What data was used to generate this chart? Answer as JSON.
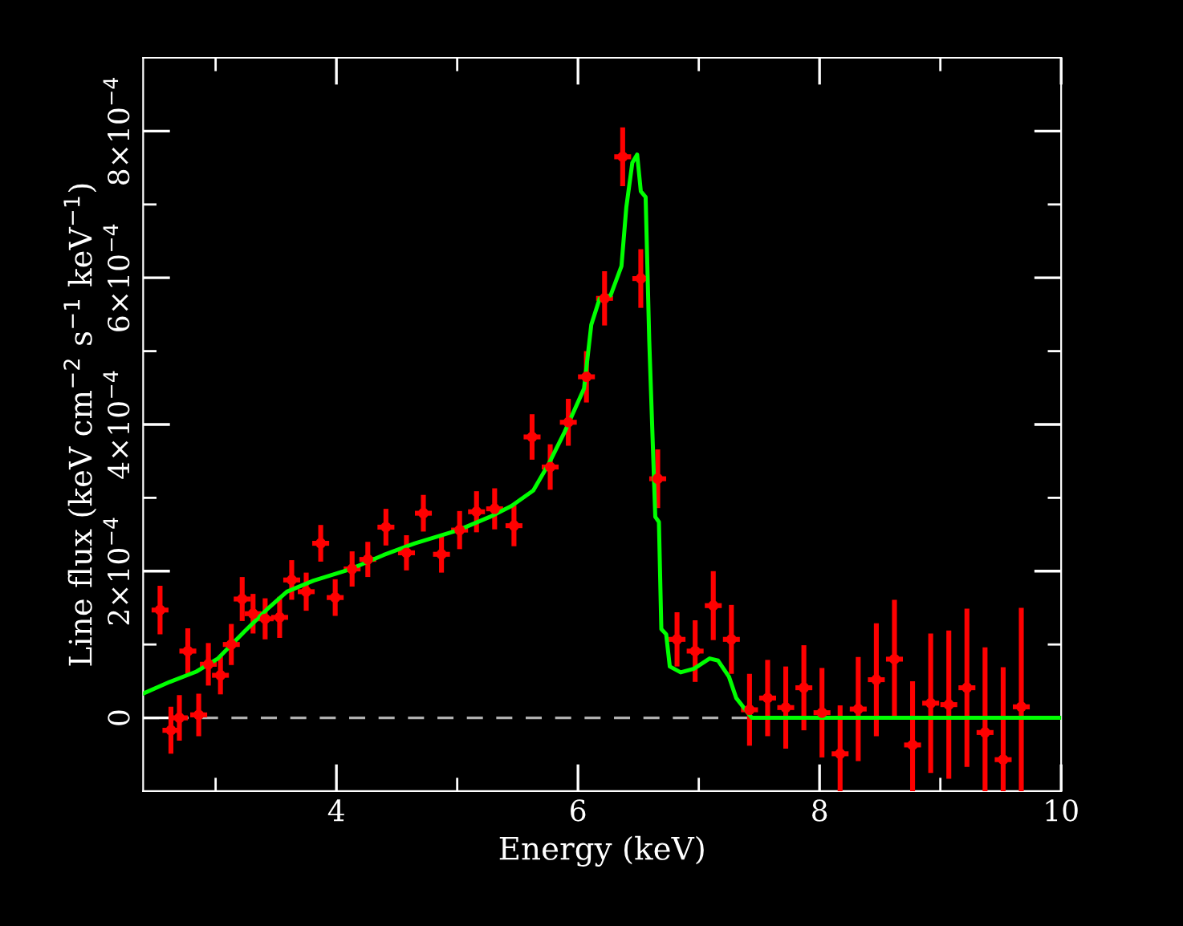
{
  "chart_data": {
    "type": "scatter",
    "xlabel": "Energy (keV)",
    "ylabel": "Line flux (keV cm$^{−2}$ s$^{−1}$ keV$^{−1}$)",
    "xlim": [
      2.4,
      10
    ],
    "ylim": [
      -0.0001,
      0.0009
    ],
    "xticks": [
      {
        "value": 3,
        "label": null
      },
      4,
      {
        "value": 5,
        "label": null
      },
      6,
      {
        "value": 7,
        "label": null
      },
      8,
      {
        "value": 9,
        "label": null
      },
      10
    ],
    "yticks": [
      0,
      {
        "value": 0.0001,
        "label": null
      },
      {
        "value": 0.0002,
        "label": "2×10$^{−4}$"
      },
      {
        "value": 0.0003,
        "label": null
      },
      {
        "value": 0.0004,
        "label": "4×10$^{−4}$"
      },
      {
        "value": 0.0005,
        "label": null
      },
      {
        "value": 0.0006,
        "label": "6×10$^{−4}$"
      },
      {
        "value": 0.0007,
        "label": null
      },
      {
        "value": 0.0008,
        "label": "8×10$^{−4}$"
      }
    ],
    "ref_lines": [
      {
        "axis": "y",
        "value": 0,
        "label": null,
        "color": "#b0b0b0",
        "line_style": "dashed"
      }
    ],
    "series": [
      {
        "color": "#ff0000",
        "marker": "circle",
        "x": [
          2.54,
          2.63,
          2.7,
          2.77,
          2.86,
          2.94,
          3.04,
          3.13,
          3.22,
          3.31,
          3.41,
          3.53,
          3.63,
          3.75,
          3.87,
          3.99,
          4.13,
          4.26,
          4.41,
          4.58,
          4.72,
          4.87,
          5.02,
          5.16,
          5.31,
          5.47,
          5.62,
          5.77,
          5.92,
          6.07,
          6.22,
          6.37,
          6.52,
          6.66,
          6.82,
          6.97,
          7.12,
          7.27,
          7.42,
          7.57,
          7.72,
          7.87,
          8.02,
          8.17,
          8.32,
          8.47,
          8.62,
          8.77,
          8.92,
          9.07,
          9.22,
          9.37,
          9.52,
          9.67
        ],
        "values": [
          0.000147,
          -1.7e-05,
          0.0,
          9.1e-05,
          4e-06,
          7.3e-05,
          5.8e-05,
          0.0001,
          0.000162,
          0.000142,
          0.000135,
          0.000137,
          0.000188,
          0.000172,
          0.000238,
          0.000164,
          0.000203,
          0.000216,
          0.00026,
          0.000225,
          0.000279,
          0.000223,
          0.000256,
          0.000281,
          0.000285,
          0.000262,
          0.000383,
          0.000342,
          0.000403,
          0.000465,
          0.000572,
          0.000765,
          0.000599,
          0.000326,
          0.000107,
          9.1e-05,
          0.000153,
          0.000107,
          1.1e-05,
          2.7e-05,
          1.4e-05,
          4.1e-05,
          7e-06,
          -4.9e-05,
          1.2e-05,
          5.2e-05,
          8e-05,
          -3.7e-05,
          2e-05,
          1.8e-05,
          4.1e-05,
          -2e-05,
          -5.7e-05,
          1.5e-05
        ],
        "errors": [
          3.3e-05,
          3.2e-05,
          3.1e-05,
          3.1e-05,
          2.9e-05,
          2.9e-05,
          2.6e-05,
          2.8e-05,
          3e-05,
          2.7e-05,
          2.8e-05,
          2.8e-05,
          2.7e-05,
          2.6e-05,
          2.5e-05,
          2.5e-05,
          2.4e-05,
          2.4e-05,
          2.5e-05,
          2.4e-05,
          2.5e-05,
          2.5e-05,
          2.6e-05,
          2.8e-05,
          2.8e-05,
          2.8e-05,
          3.1e-05,
          3.1e-05,
          3.2e-05,
          3.5e-05,
          3.7e-05,
          4e-05,
          4e-05,
          4e-05,
          3.7e-05,
          4.2e-05,
          4.7e-05,
          4.7e-05,
          4.9e-05,
          5.2e-05,
          5.6e-05,
          5.8e-05,
          6.1e-05,
          [
            -0.0001,
            1.7e-05
          ],
          7.1e-05,
          7.7e-05,
          8.1e-05,
          [
            -0.0001,
            5e-05
          ],
          9.5e-05,
          0.000101,
          0.000108,
          [
            -0.0001,
            9.6e-05
          ],
          [
            -0.0001,
            6.9e-05
          ],
          [
            -0.0001,
            0.00015
          ]
        ],
        "xerrors": [
          0.07,
          0.07,
          0.07,
          0.07,
          0.07,
          0.07,
          0.07,
          0.07,
          0.07,
          0.07,
          0.07,
          0.07,
          0.07,
          0.07,
          0.07,
          0.07,
          0.07,
          0.07,
          0.07,
          0.07,
          0.07,
          0.07,
          0.07,
          0.07,
          0.07,
          0.07,
          0.07,
          0.07,
          0.07,
          0.07,
          0.07,
          0.07,
          0.07,
          0.07,
          0.07,
          0.07,
          0.07,
          0.07,
          0.07,
          0.07,
          0.07,
          0.07,
          0.07,
          0.07,
          0.07,
          0.07,
          0.07,
          0.07,
          0.07,
          0.07,
          0.07,
          0.07,
          0.07,
          0.07
        ]
      },
      {
        "type": "line",
        "color": "#00ff00",
        "x": [
          2.4,
          2.62,
          2.84,
          3.02,
          3.24,
          3.42,
          3.59,
          3.81,
          4.12,
          4.39,
          4.65,
          5.01,
          5.27,
          5.45,
          5.63,
          5.76,
          5.89,
          6.05,
          6.11,
          6.18,
          6.27,
          6.36,
          6.4,
          6.45,
          6.49,
          6.52,
          6.56,
          6.59,
          6.64,
          6.67,
          6.69,
          6.73,
          6.76,
          6.85,
          6.96,
          7.09,
          7.16,
          7.25,
          7.31,
          7.42,
          7.44,
          10
        ],
        "values": [
          3.3e-05,
          4.9e-05,
          6.3e-05,
          8.1e-05,
          0.000118,
          0.000147,
          0.000172,
          0.000187,
          0.000203,
          0.000222,
          0.000238,
          0.000256,
          0.000274,
          0.000289,
          0.00031,
          0.000347,
          0.00039,
          0.000449,
          0.000536,
          0.000572,
          0.000576,
          0.000616,
          0.000696,
          0.000757,
          0.000768,
          0.000718,
          0.00071,
          0.000514,
          0.000274,
          0.000267,
          0.000121,
          0.000114,
          7e-05,
          6.2e-05,
          6.7e-05,
          8.1e-05,
          7.8e-05,
          5.6e-05,
          2.7e-05,
          4e-06,
          0,
          0
        ]
      }
    ]
  }
}
